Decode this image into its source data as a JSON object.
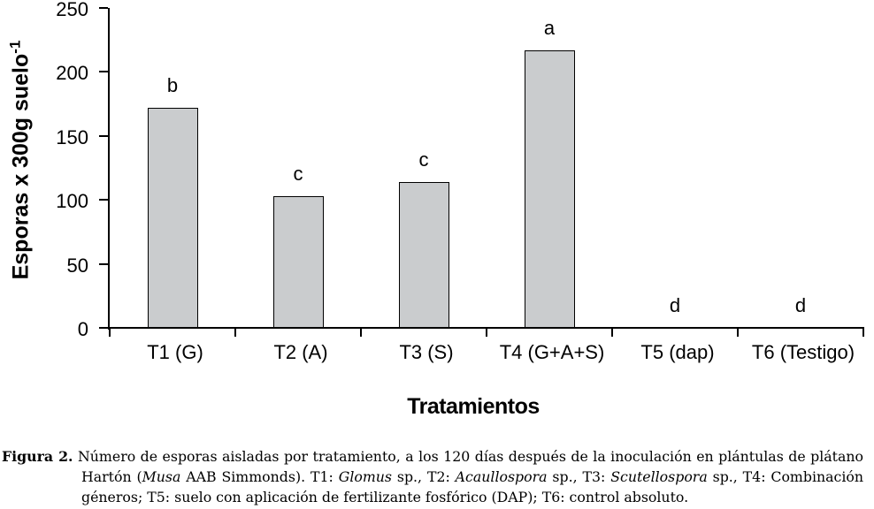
{
  "chart_data": {
    "type": "bar",
    "categories": [
      "T1 (G)",
      "T2 (A)",
      "T3 (S)",
      "T4 (G+A+S)",
      "T5 (dap)",
      "T6 (Testigo)"
    ],
    "values": [
      172,
      103,
      114,
      217,
      0,
      0
    ],
    "bar_stat_labels": [
      "b",
      "c",
      "c",
      "a",
      "d",
      "d"
    ],
    "title": "",
    "xlabel": "Tratamientos",
    "ylabel": "Esporas x 300g suelo",
    "ylabel_exponent": "-1",
    "ylim": [
      0,
      250
    ],
    "yticks": [
      0,
      50,
      100,
      150,
      200,
      250
    ],
    "grid": false,
    "legend": false,
    "bar_fill_color": "#caccce",
    "bar_border_color": "#000000",
    "axis_color": "#000000",
    "text_color": "#000000"
  },
  "caption": {
    "segments": [
      {
        "text": "Figura 2.",
        "bold": true
      },
      {
        "text": " Número de esporas aisladas por tratamiento, a los 120 días después de la inoculación en plántulas de plátano Hartón ("
      },
      {
        "text": "Musa",
        "italic": true
      },
      {
        "text": " AAB Simmonds). T1: "
      },
      {
        "text": "Glomus",
        "italic": true
      },
      {
        "text": " sp., T2: "
      },
      {
        "text": "Acaullospora",
        "italic": true
      },
      {
        "text": " sp., T3: "
      },
      {
        "text": "Scutellospora",
        "italic": true
      },
      {
        "text": " sp., T4: Combinación géneros; T5: suelo con aplicación de fertilizante fosfórico (DAP); T6: control absoluto."
      }
    ]
  }
}
